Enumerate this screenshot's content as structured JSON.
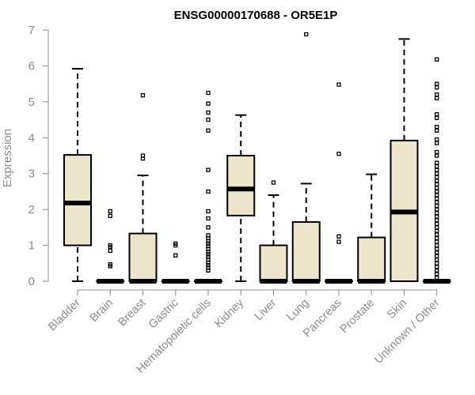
{
  "chart_data": {
    "type": "boxplot",
    "title": "ENSG00000170688 - OR5E1P",
    "xlabel": "",
    "ylabel": "Expression",
    "ylim": [
      0,
      7
    ],
    "yticks": [
      0,
      1,
      2,
      3,
      4,
      5,
      6,
      7
    ],
    "grid": false,
    "legend": "none",
    "colors": {
      "box_fill": "#ede5cb",
      "stroke": "#000000",
      "axis": "#8c8c8c"
    },
    "categories": [
      "Bladder",
      "Brain",
      "Breast",
      "Gastric",
      "Hematopoietic cells",
      "Kidney",
      "Liver",
      "Lung",
      "Pancreas",
      "Prostate",
      "Skin",
      "Unknown / Other"
    ],
    "boxes": [
      {
        "category": "Bladder",
        "whisker_low": 0,
        "q1": 1.0,
        "median": 2.18,
        "q3": 3.52,
        "whisker_high": 5.92,
        "outliers": []
      },
      {
        "category": "Brain",
        "whisker_low": 0,
        "q1": 0,
        "median": 0,
        "q3": 0,
        "whisker_high": 0,
        "outliers": [
          0.42,
          0.47,
          0.85,
          0.95,
          1.0,
          1.82,
          1.95
        ]
      },
      {
        "category": "Breast",
        "whisker_low": 0,
        "q1": 0,
        "median": 0,
        "q3": 1.33,
        "whisker_high": 2.95,
        "outliers": [
          3.42,
          3.5,
          5.18
        ]
      },
      {
        "category": "Gastric",
        "whisker_low": 0,
        "q1": 0,
        "median": 0,
        "q3": 0,
        "whisker_high": 0,
        "outliers": [
          0.72,
          1.0,
          1.05
        ]
      },
      {
        "category": "Hematopoietic cells",
        "whisker_low": 0,
        "q1": 0,
        "median": 0,
        "q3": 0,
        "whisker_high": 0,
        "outliers": [
          0.3,
          0.38,
          0.45,
          0.52,
          0.6,
          0.68,
          0.75,
          0.82,
          0.9,
          0.98,
          1.05,
          1.12,
          1.2,
          1.28,
          1.5,
          1.75,
          1.95,
          2.5,
          3.1,
          4.2,
          4.5,
          4.7,
          4.95,
          5.25
        ]
      },
      {
        "category": "Kidney",
        "whisker_low": 0,
        "q1": 1.83,
        "median": 2.57,
        "q3": 3.5,
        "whisker_high": 4.63,
        "outliers": []
      },
      {
        "category": "Liver",
        "whisker_low": 0,
        "q1": 0,
        "median": 0,
        "q3": 1.0,
        "whisker_high": 2.4,
        "outliers": [
          2.75
        ]
      },
      {
        "category": "Lung",
        "whisker_low": 0,
        "q1": 0,
        "median": 0,
        "q3": 1.65,
        "whisker_high": 2.72,
        "outliers": [
          6.88
        ]
      },
      {
        "category": "Pancreas",
        "whisker_low": 0,
        "q1": 0,
        "median": 0,
        "q3": 0,
        "whisker_high": 0,
        "outliers": [
          1.1,
          1.25,
          3.55,
          5.48
        ]
      },
      {
        "category": "Prostate",
        "whisker_low": 0,
        "q1": 0,
        "median": 0,
        "q3": 1.22,
        "whisker_high": 2.98,
        "outliers": []
      },
      {
        "category": "Skin",
        "whisker_low": 0,
        "q1": 0,
        "median": 1.93,
        "q3": 3.92,
        "whisker_high": 6.75,
        "outliers": []
      },
      {
        "category": "Unknown / Other",
        "whisker_low": 0,
        "q1": 0,
        "median": 0,
        "q3": 0,
        "whisker_high": 0,
        "outliers": [
          0.1,
          0.2,
          0.3,
          0.4,
          0.5,
          0.6,
          0.7,
          0.8,
          0.9,
          1.0,
          1.1,
          1.2,
          1.3,
          1.4,
          1.5,
          1.6,
          1.7,
          1.8,
          1.9,
          2.0,
          2.1,
          2.2,
          2.3,
          2.4,
          2.5,
          2.6,
          2.7,
          2.8,
          2.9,
          3.0,
          3.1,
          3.2,
          3.3,
          3.5,
          3.6,
          3.85,
          3.95,
          4.2,
          4.3,
          4.55,
          4.65,
          5.1,
          5.2,
          5.4,
          5.5,
          6.18
        ]
      }
    ]
  }
}
